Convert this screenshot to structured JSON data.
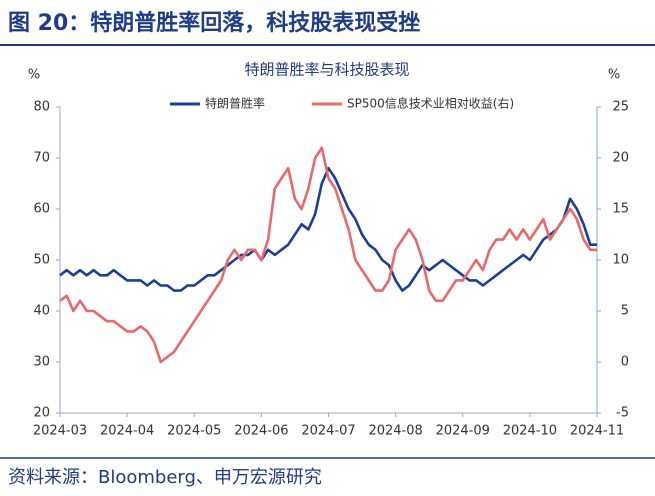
{
  "header": {
    "title": "图 20：特朗普胜率回落，科技股表现受挫"
  },
  "source": "资料来源：Bloomberg、申万宏源研究",
  "chart_data": {
    "type": "line",
    "title": "特朗普胜率与科技股表现",
    "ylabel": "%",
    "y2label": "%",
    "categories": [
      "2024-03",
      null,
      null,
      null,
      null,
      null,
      null,
      null,
      null,
      null,
      "2024-04",
      null,
      null,
      null,
      null,
      null,
      null,
      null,
      null,
      null,
      "2024-05",
      null,
      null,
      null,
      null,
      null,
      null,
      null,
      null,
      null,
      "2024-06",
      null,
      null,
      null,
      null,
      null,
      null,
      null,
      null,
      null,
      "2024-07",
      null,
      null,
      null,
      null,
      null,
      null,
      null,
      null,
      null,
      "2024-08",
      null,
      null,
      null,
      null,
      null,
      null,
      null,
      null,
      null,
      "2024-09",
      null,
      null,
      null,
      null,
      null,
      null,
      null,
      null,
      null,
      "2024-10",
      null,
      null,
      null,
      null,
      null,
      null,
      null,
      null,
      null,
      "2024-11"
    ],
    "series": [
      {
        "name": "特朗普胜率",
        "color": "#1a3f9a",
        "axis": "y",
        "values": [
          47,
          48,
          47,
          48,
          47,
          48,
          47,
          47,
          48,
          47,
          46,
          46,
          46,
          45,
          46,
          45,
          45,
          44,
          44,
          45,
          45,
          46,
          47,
          47,
          48,
          49,
          50,
          51,
          51,
          52,
          50,
          52,
          51,
          52,
          53,
          55,
          57,
          56,
          59,
          65,
          68,
          66,
          63,
          60,
          58,
          55,
          53,
          52,
          50,
          49,
          46,
          44,
          45,
          47,
          49,
          48,
          49,
          50,
          49,
          48,
          47,
          46,
          46,
          45,
          46,
          47,
          48,
          49,
          50,
          51,
          50,
          52,
          54,
          55,
          56,
          58,
          62,
          60,
          57,
          53,
          53
        ]
      },
      {
        "name": "SP500信息技术业相对收益(右)",
        "color": "#e8696b",
        "axis": "y2",
        "values": [
          6,
          6.5,
          5,
          6,
          5,
          5,
          4.5,
          4,
          4,
          3.5,
          3,
          3,
          3.5,
          3,
          2,
          0,
          0.5,
          1,
          2,
          3,
          4,
          5,
          6,
          7,
          8,
          10,
          11,
          10,
          11,
          11,
          10,
          12,
          17,
          18,
          19,
          16,
          15,
          17,
          20,
          21,
          18,
          17,
          15,
          13,
          10,
          9,
          8,
          7,
          7,
          8,
          11,
          12,
          13,
          12,
          10,
          7,
          6,
          6,
          7,
          8,
          8,
          9,
          10,
          9,
          11,
          12,
          12,
          13,
          12,
          13,
          12,
          13,
          14,
          12,
          13,
          14,
          15,
          14,
          12,
          11,
          11
        ]
      }
    ],
    "ylim": [
      20,
      80
    ],
    "yticks": [
      20,
      30,
      40,
      50,
      60,
      70,
      80
    ],
    "y2lim": [
      -5,
      25
    ],
    "y2ticks": [
      -5,
      0,
      5,
      10,
      15,
      20,
      25
    ]
  }
}
